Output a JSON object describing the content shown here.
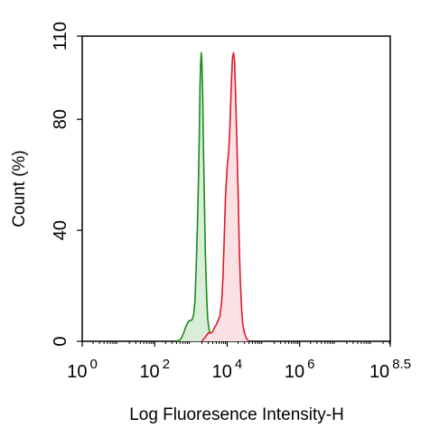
{
  "chart_data": {
    "type": "line",
    "title": "",
    "xlabel": "Log Fluoresence Intensity-H",
    "ylabel": "Count  (%)",
    "x_scale": "log",
    "xlim": [
      1,
      316227766
    ],
    "ylim": [
      0,
      110
    ],
    "grid": false,
    "legend": "none",
    "x_ticks": [
      {
        "value": 1,
        "base": "10",
        "exp": "0"
      },
      {
        "value": 100,
        "base": "10",
        "exp": "2"
      },
      {
        "value": 10000,
        "base": "10",
        "exp": "4"
      },
      {
        "value": 1000000,
        "base": "10",
        "exp": "6"
      },
      {
        "value": 316227766,
        "base": "10",
        "exp": "8.5"
      }
    ],
    "y_ticks": [
      {
        "value": 0,
        "label": "0"
      },
      {
        "value": 40,
        "label": "40"
      },
      {
        "value": 80,
        "label": "80"
      },
      {
        "value": 110,
        "label": "110"
      }
    ],
    "series": [
      {
        "color": "#1a8a1a",
        "fill": "#d9eed9",
        "x": [
          400,
          500,
          560,
          630,
          710,
          800,
          900,
          1000,
          1100,
          1200,
          1300,
          1400,
          1500,
          1600,
          1700,
          1780,
          1850,
          1930,
          2000,
          2100,
          2200,
          2350,
          2500,
          2700,
          2900,
          3200,
          3500,
          4000
        ],
        "y": [
          0,
          0.5,
          1.5,
          3,
          5,
          6.5,
          7.5,
          7.5,
          8,
          10,
          15,
          27,
          40,
          55,
          74,
          92,
          100,
          104,
          101,
          90,
          72,
          52,
          32,
          17,
          8,
          4,
          1.5,
          0
        ]
      },
      {
        "color": "#dd1a2a",
        "fill": "#fbe0e4",
        "x": [
          2000,
          2500,
          3000,
          3500,
          4000,
          4500,
          5000,
          5600,
          6300,
          7000,
          7600,
          8300,
          9000,
          10000,
          11000,
          12000,
          13000,
          14000,
          15000,
          16000,
          17000,
          18500,
          20000,
          21500,
          23000,
          25000,
          27000,
          30000,
          34000,
          40000
        ],
        "y": [
          0,
          1.5,
          3,
          3,
          3.5,
          5,
          6,
          7.5,
          9,
          14,
          22,
          37,
          52,
          63,
          68,
          78,
          92,
          102,
          104,
          101,
          90,
          72,
          55,
          35,
          22,
          12,
          6,
          3,
          1,
          0
        ]
      }
    ]
  }
}
